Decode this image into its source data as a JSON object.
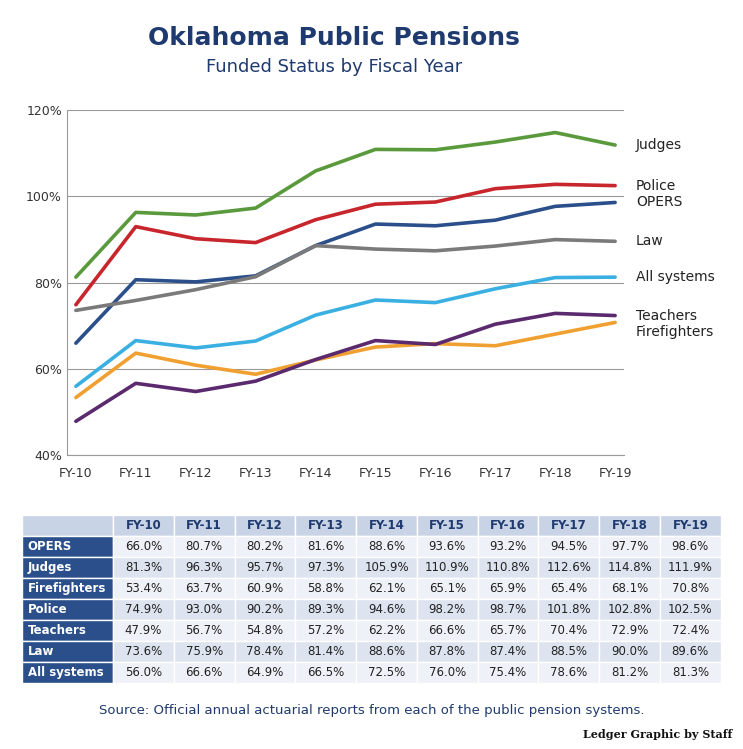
{
  "chart_data": {
    "type": "line",
    "title": "Oklahoma Public Pensions",
    "subtitle": "Funded Status by Fiscal Year",
    "categories": [
      "FY-10",
      "FY-11",
      "FY-12",
      "FY-13",
      "FY-14",
      "FY-15",
      "FY-16",
      "FY-17",
      "FY-18",
      "FY-19"
    ],
    "series": [
      {
        "name": "OPERS",
        "color": "#2a4f8a",
        "values": [
          66.0,
          80.7,
          80.2,
          81.6,
          88.6,
          93.6,
          93.2,
          94.5,
          97.7,
          98.6
        ],
        "value_labels": [
          "66.0%",
          "80.7%",
          "80.2%",
          "81.6%",
          "88.6%",
          "93.6%",
          "93.2%",
          "94.5%",
          "97.7%",
          "98.6%"
        ]
      },
      {
        "name": "Judges",
        "color": "#5a9a3c",
        "values": [
          81.3,
          96.3,
          95.7,
          97.3,
          105.9,
          110.9,
          110.8,
          112.6,
          114.8,
          111.9
        ],
        "value_labels": [
          "81.3%",
          "96.3%",
          "95.7%",
          "97.3%",
          "105.9%",
          "110.9%",
          "110.8%",
          "112.6%",
          "114.8%",
          "111.9%"
        ]
      },
      {
        "name": "Firefighters",
        "color": "#f0a030",
        "values": [
          53.4,
          63.7,
          60.9,
          58.8,
          62.1,
          65.1,
          65.9,
          65.4,
          68.1,
          70.8
        ],
        "value_labels": [
          "53.4%",
          "63.7%",
          "60.9%",
          "58.8%",
          "62.1%",
          "65.1%",
          "65.9%",
          "65.4%",
          "68.1%",
          "70.8%"
        ]
      },
      {
        "name": "Police",
        "color": "#c8262d",
        "values": [
          74.9,
          93.0,
          90.2,
          89.3,
          94.6,
          98.2,
          98.7,
          101.8,
          102.8,
          102.5
        ],
        "value_labels": [
          "74.9%",
          "93.0%",
          "90.2%",
          "89.3%",
          "94.6%",
          "98.2%",
          "98.7%",
          "101.8%",
          "102.8%",
          "102.5%"
        ]
      },
      {
        "name": "Teachers",
        "color": "#5b2a6e",
        "values": [
          47.9,
          56.7,
          54.8,
          57.2,
          62.2,
          66.6,
          65.7,
          70.4,
          72.9,
          72.4
        ],
        "value_labels": [
          "47.9%",
          "56.7%",
          "54.8%",
          "57.2%",
          "62.2%",
          "66.6%",
          "65.7%",
          "70.4%",
          "72.9%",
          "72.4%"
        ]
      },
      {
        "name": "Law",
        "color": "#7a7a7a",
        "values": [
          73.6,
          75.9,
          78.4,
          81.4,
          88.6,
          87.8,
          87.4,
          88.5,
          90.0,
          89.6
        ],
        "value_labels": [
          "73.6%",
          "75.9%",
          "78.4%",
          "81.4%",
          "88.6%",
          "87.8%",
          "87.4%",
          "88.5%",
          "90.0%",
          "89.6%"
        ]
      },
      {
        "name": "All systems",
        "color": "#3ab0e2",
        "values": [
          56.0,
          66.6,
          64.9,
          66.5,
          72.5,
          76.0,
          75.4,
          78.6,
          81.2,
          81.3
        ],
        "value_labels": [
          "56.0%",
          "66.6%",
          "64.9%",
          "66.5%",
          "72.5%",
          "76.0%",
          "75.4%",
          "78.6%",
          "81.2%",
          "81.3%"
        ]
      }
    ],
    "ylim": [
      40,
      120
    ],
    "yticks": [
      {
        "value": 40,
        "label": "40%"
      },
      {
        "value": 60,
        "label": "60%"
      },
      {
        "value": 80,
        "label": "80%"
      },
      {
        "value": 100,
        "label": "100%"
      },
      {
        "value": 120,
        "label": "120%"
      }
    ],
    "grid": true,
    "source": "Source: Official annual actuarial reports from each of the public pension systems.",
    "credit": "Ledger Graphic by Staff"
  }
}
